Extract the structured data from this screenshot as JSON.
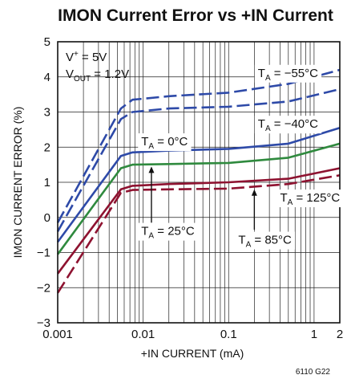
{
  "chart_data": {
    "type": "line",
    "title": "IMON Current Error vs +IN Current",
    "xlabel": "+IN CURRENT (mA)",
    "ylabel": "IMON CURRENT ERROR (%)",
    "xscale": "log",
    "xlim": [
      0.001,
      2
    ],
    "ylim": [
      -3,
      5
    ],
    "x_ticks": [
      0.001,
      0.01,
      0.1,
      1,
      2
    ],
    "x_tick_labels": [
      "0.001",
      "0.01",
      "0.1",
      "1",
      "2"
    ],
    "y_ticks": [
      -3,
      -2,
      -1,
      0,
      1,
      2,
      3,
      4,
      5
    ],
    "y_tick_labels": [
      "−3",
      "−2",
      "−1",
      "0",
      "1",
      "2",
      "3",
      "4",
      "5"
    ],
    "grid": true,
    "conditions": {
      "v_plus": {
        "label": "V",
        "sup": "+",
        "rest": " = 5V"
      },
      "v_out": {
        "label": "V",
        "sub": "OUT",
        "rest": " = 1.2V"
      }
    },
    "series": [
      {
        "name": "−55°C",
        "color": "#2e4aa8",
        "dash": "dashed",
        "x": [
          0.001,
          0.0055,
          0.0075,
          0.02,
          0.1,
          0.5,
          2
        ],
        "y": [
          -0.15,
          3.1,
          3.35,
          3.45,
          3.55,
          3.8,
          4.2
        ]
      },
      {
        "name": "−40°C",
        "color": "#2e4aa8",
        "dash": "dashed",
        "x": [
          0.001,
          0.0055,
          0.0075,
          0.02,
          0.1,
          0.5,
          2
        ],
        "y": [
          -0.4,
          2.8,
          3.0,
          3.1,
          3.15,
          3.3,
          3.65
        ]
      },
      {
        "name": "0°C",
        "color": "#2e4aa8",
        "dash": "solid",
        "x": [
          0.001,
          0.0055,
          0.0075,
          0.02,
          0.1,
          0.5,
          2
        ],
        "y": [
          -0.7,
          1.75,
          1.85,
          1.9,
          1.95,
          2.1,
          2.55
        ]
      },
      {
        "name": "25°C",
        "color": "#2f8a3e",
        "dash": "solid",
        "x": [
          0.001,
          0.0055,
          0.0075,
          0.02,
          0.1,
          0.5,
          2
        ],
        "y": [
          -1.05,
          1.4,
          1.5,
          1.52,
          1.55,
          1.7,
          2.1
        ]
      },
      {
        "name": "85°C",
        "color": "#8e1230",
        "dash": "solid",
        "x": [
          0.001,
          0.0055,
          0.0075,
          0.02,
          0.1,
          0.5,
          2
        ],
        "y": [
          -1.6,
          0.8,
          0.9,
          0.95,
          1.0,
          1.1,
          1.4
        ]
      },
      {
        "name": "125°C",
        "color": "#8e1230",
        "dash": "dashed",
        "x": [
          0.001,
          0.0055,
          0.0075,
          0.02,
          0.1,
          0.5,
          2
        ],
        "y": [
          -2.15,
          0.7,
          0.78,
          0.8,
          0.82,
          0.95,
          1.2
        ]
      }
    ],
    "annotations": [
      {
        "id": "m55",
        "prefix": "T",
        "sub": "A",
        "text": " = −55°C",
        "x": 0.22,
        "y": 4.0
      },
      {
        "id": "m40",
        "prefix": "T",
        "sub": "A",
        "text": " = −40°C",
        "x": 0.22,
        "y": 2.55
      },
      {
        "id": "z0",
        "prefix": "T",
        "sub": "A",
        "text": " = 0°C",
        "x": 0.0095,
        "y": 2.05
      },
      {
        "id": "p25",
        "prefix": "T",
        "sub": "A",
        "text": " = 25°C",
        "x": 0.0095,
        "y": -0.5
      },
      {
        "id": "p85",
        "prefix": "T",
        "sub": "A",
        "text": " = 85°C",
        "x": 0.13,
        "y": -0.75
      },
      {
        "id": "p125",
        "prefix": "T",
        "sub": "A",
        "text": " = 125°C",
        "x": 0.4,
        "y": 0.45
      }
    ],
    "figure_id": "6110 G22"
  }
}
